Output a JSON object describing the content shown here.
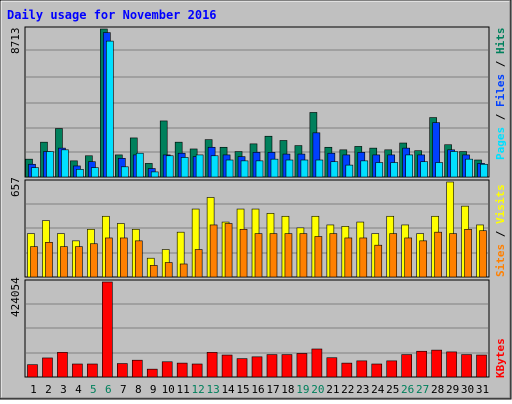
{
  "title": "Daily usage for November 2016",
  "colors": {
    "background": "#c0c0c0",
    "title": "#0000ff",
    "weekday_label": "#000000",
    "weekend_label": "#00805c",
    "hits": "#00805c",
    "files": "#0040ff",
    "pages": "#00e0ff",
    "visits": "#ffff00",
    "sites": "#ff8000",
    "kbytes": "#ff0000",
    "grid": "#808080"
  },
  "chart_data": [
    {
      "type": "bar",
      "panel": "hits-files-pages",
      "max_label": "8713",
      "legend": [
        {
          "name": "Pages",
          "color": "#00e0ff"
        },
        {
          "name": "Files",
          "color": "#0040ff"
        },
        {
          "name": "Hits",
          "color": "#00805c"
        }
      ],
      "legend_separator": " / ",
      "ylim": [
        0,
        8713
      ],
      "series": [
        {
          "name": "Hits",
          "values": [
            1050,
            2050,
            2850,
            950,
            1250,
            8713,
            1300,
            2300,
            800,
            3300,
            2050,
            1650,
            2200,
            1750,
            1500,
            1950,
            2400,
            2150,
            1850,
            3800,
            1750,
            1600,
            1800,
            1700,
            1600,
            2000,
            1550,
            3500,
            1900,
            1500,
            1000
          ]
        },
        {
          "name": "Files",
          "values": [
            750,
            1500,
            1700,
            650,
            900,
            8500,
            1100,
            1300,
            500,
            1300,
            1400,
            1200,
            1750,
            1300,
            1200,
            1450,
            1450,
            1350,
            1350,
            2600,
            1400,
            1300,
            1450,
            1300,
            1300,
            1700,
            1300,
            3200,
            1600,
            1300,
            800
          ]
        },
        {
          "name": "Pages",
          "values": [
            550,
            1500,
            1600,
            450,
            550,
            8000,
            600,
            1400,
            300,
            1250,
            1150,
            1300,
            1250,
            1000,
            950,
            950,
            1050,
            1000,
            1000,
            1000,
            900,
            700,
            950,
            850,
            850,
            1300,
            900,
            850,
            1500,
            1050,
            750
          ]
        }
      ]
    },
    {
      "type": "bar",
      "panel": "visits-sites",
      "max_label": "657",
      "legend": [
        {
          "name": "Sites",
          "color": "#ff8000"
        },
        {
          "name": "Visits",
          "color": "#ffff00"
        }
      ],
      "legend_separator": " / ",
      "ylim": [
        0,
        657
      ],
      "series": [
        {
          "name": "Visits",
          "values": [
            300,
            390,
            300,
            250,
            330,
            420,
            370,
            330,
            130,
            190,
            310,
            470,
            550,
            380,
            470,
            470,
            440,
            420,
            340,
            420,
            360,
            350,
            380,
            300,
            420,
            360,
            300,
            420,
            657,
            490,
            360
          ]
        },
        {
          "name": "Sites",
          "values": [
            210,
            240,
            210,
            210,
            230,
            270,
            270,
            250,
            80,
            100,
            90,
            190,
            360,
            370,
            330,
            300,
            300,
            300,
            300,
            280,
            300,
            270,
            270,
            220,
            300,
            270,
            250,
            310,
            300,
            330,
            320
          ]
        }
      ]
    },
    {
      "type": "bar",
      "panel": "kbytes",
      "max_label": "424054",
      "legend": [
        {
          "name": "KBytes",
          "color": "#ff0000"
        }
      ],
      "ylim": [
        0,
        424054
      ],
      "series": [
        {
          "name": "KBytes",
          "values": [
            55000,
            85000,
            110000,
            58000,
            58000,
            424054,
            60000,
            75000,
            35000,
            68000,
            62000,
            58000,
            110000,
            98000,
            82000,
            90000,
            100000,
            100000,
            105000,
            125000,
            86000,
            62000,
            72000,
            58000,
            72000,
            100000,
            115000,
            120000,
            112000,
            100000,
            98000
          ]
        }
      ]
    }
  ],
  "x_labels": [
    "1",
    "2",
    "3",
    "4",
    "5",
    "6",
    "7",
    "8",
    "9",
    "10",
    "11",
    "12",
    "13",
    "14",
    "15",
    "16",
    "17",
    "18",
    "19",
    "20",
    "21",
    "22",
    "23",
    "24",
    "25",
    "26",
    "27",
    "28",
    "29",
    "30",
    "31"
  ],
  "weekend_days": [
    5,
    6,
    12,
    13,
    19,
    20,
    26,
    27
  ]
}
